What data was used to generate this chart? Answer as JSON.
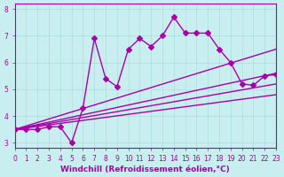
{
  "xlabel": "Windchill (Refroidissement éolien,°C)",
  "bg_color": "#c8eef0",
  "line_color": "#aa00aa",
  "grid_color": "#aadddd",
  "xlim": [
    0,
    23
  ],
  "ylim": [
    2.8,
    8.2
  ],
  "xticks": [
    0,
    1,
    2,
    3,
    4,
    5,
    6,
    7,
    8,
    9,
    10,
    11,
    12,
    13,
    14,
    15,
    16,
    17,
    18,
    19,
    20,
    21,
    22,
    23
  ],
  "yticks": [
    3,
    4,
    5,
    6,
    7,
    8
  ],
  "line1_x": [
    0,
    1,
    2,
    3,
    4,
    5,
    6,
    7,
    8,
    9,
    10,
    11,
    12,
    13,
    14,
    15,
    16,
    17,
    18,
    19,
    20,
    21,
    22,
    23
  ],
  "line1_y": [
    3.5,
    3.5,
    3.5,
    3.6,
    3.6,
    3.0,
    4.3,
    6.9,
    5.4,
    5.1,
    6.5,
    6.9,
    6.6,
    7.0,
    7.7,
    7.1,
    7.1,
    7.1,
    6.5,
    6.0,
    5.2,
    5.15,
    5.5,
    5.55
  ],
  "line2_x": [
    0,
    23
  ],
  "line2_y": [
    3.5,
    6.5
  ],
  "line3_x": [
    0,
    23
  ],
  "line3_y": [
    3.5,
    5.6
  ],
  "line4_x": [
    0,
    23
  ],
  "line4_y": [
    3.5,
    5.2
  ],
  "line5_x": [
    0,
    23
  ],
  "line5_y": [
    3.5,
    4.8
  ],
  "marker": "D",
  "markersize": 3,
  "linewidth": 1.0,
  "tick_fontsize": 5.5,
  "label_fontsize": 6.5
}
